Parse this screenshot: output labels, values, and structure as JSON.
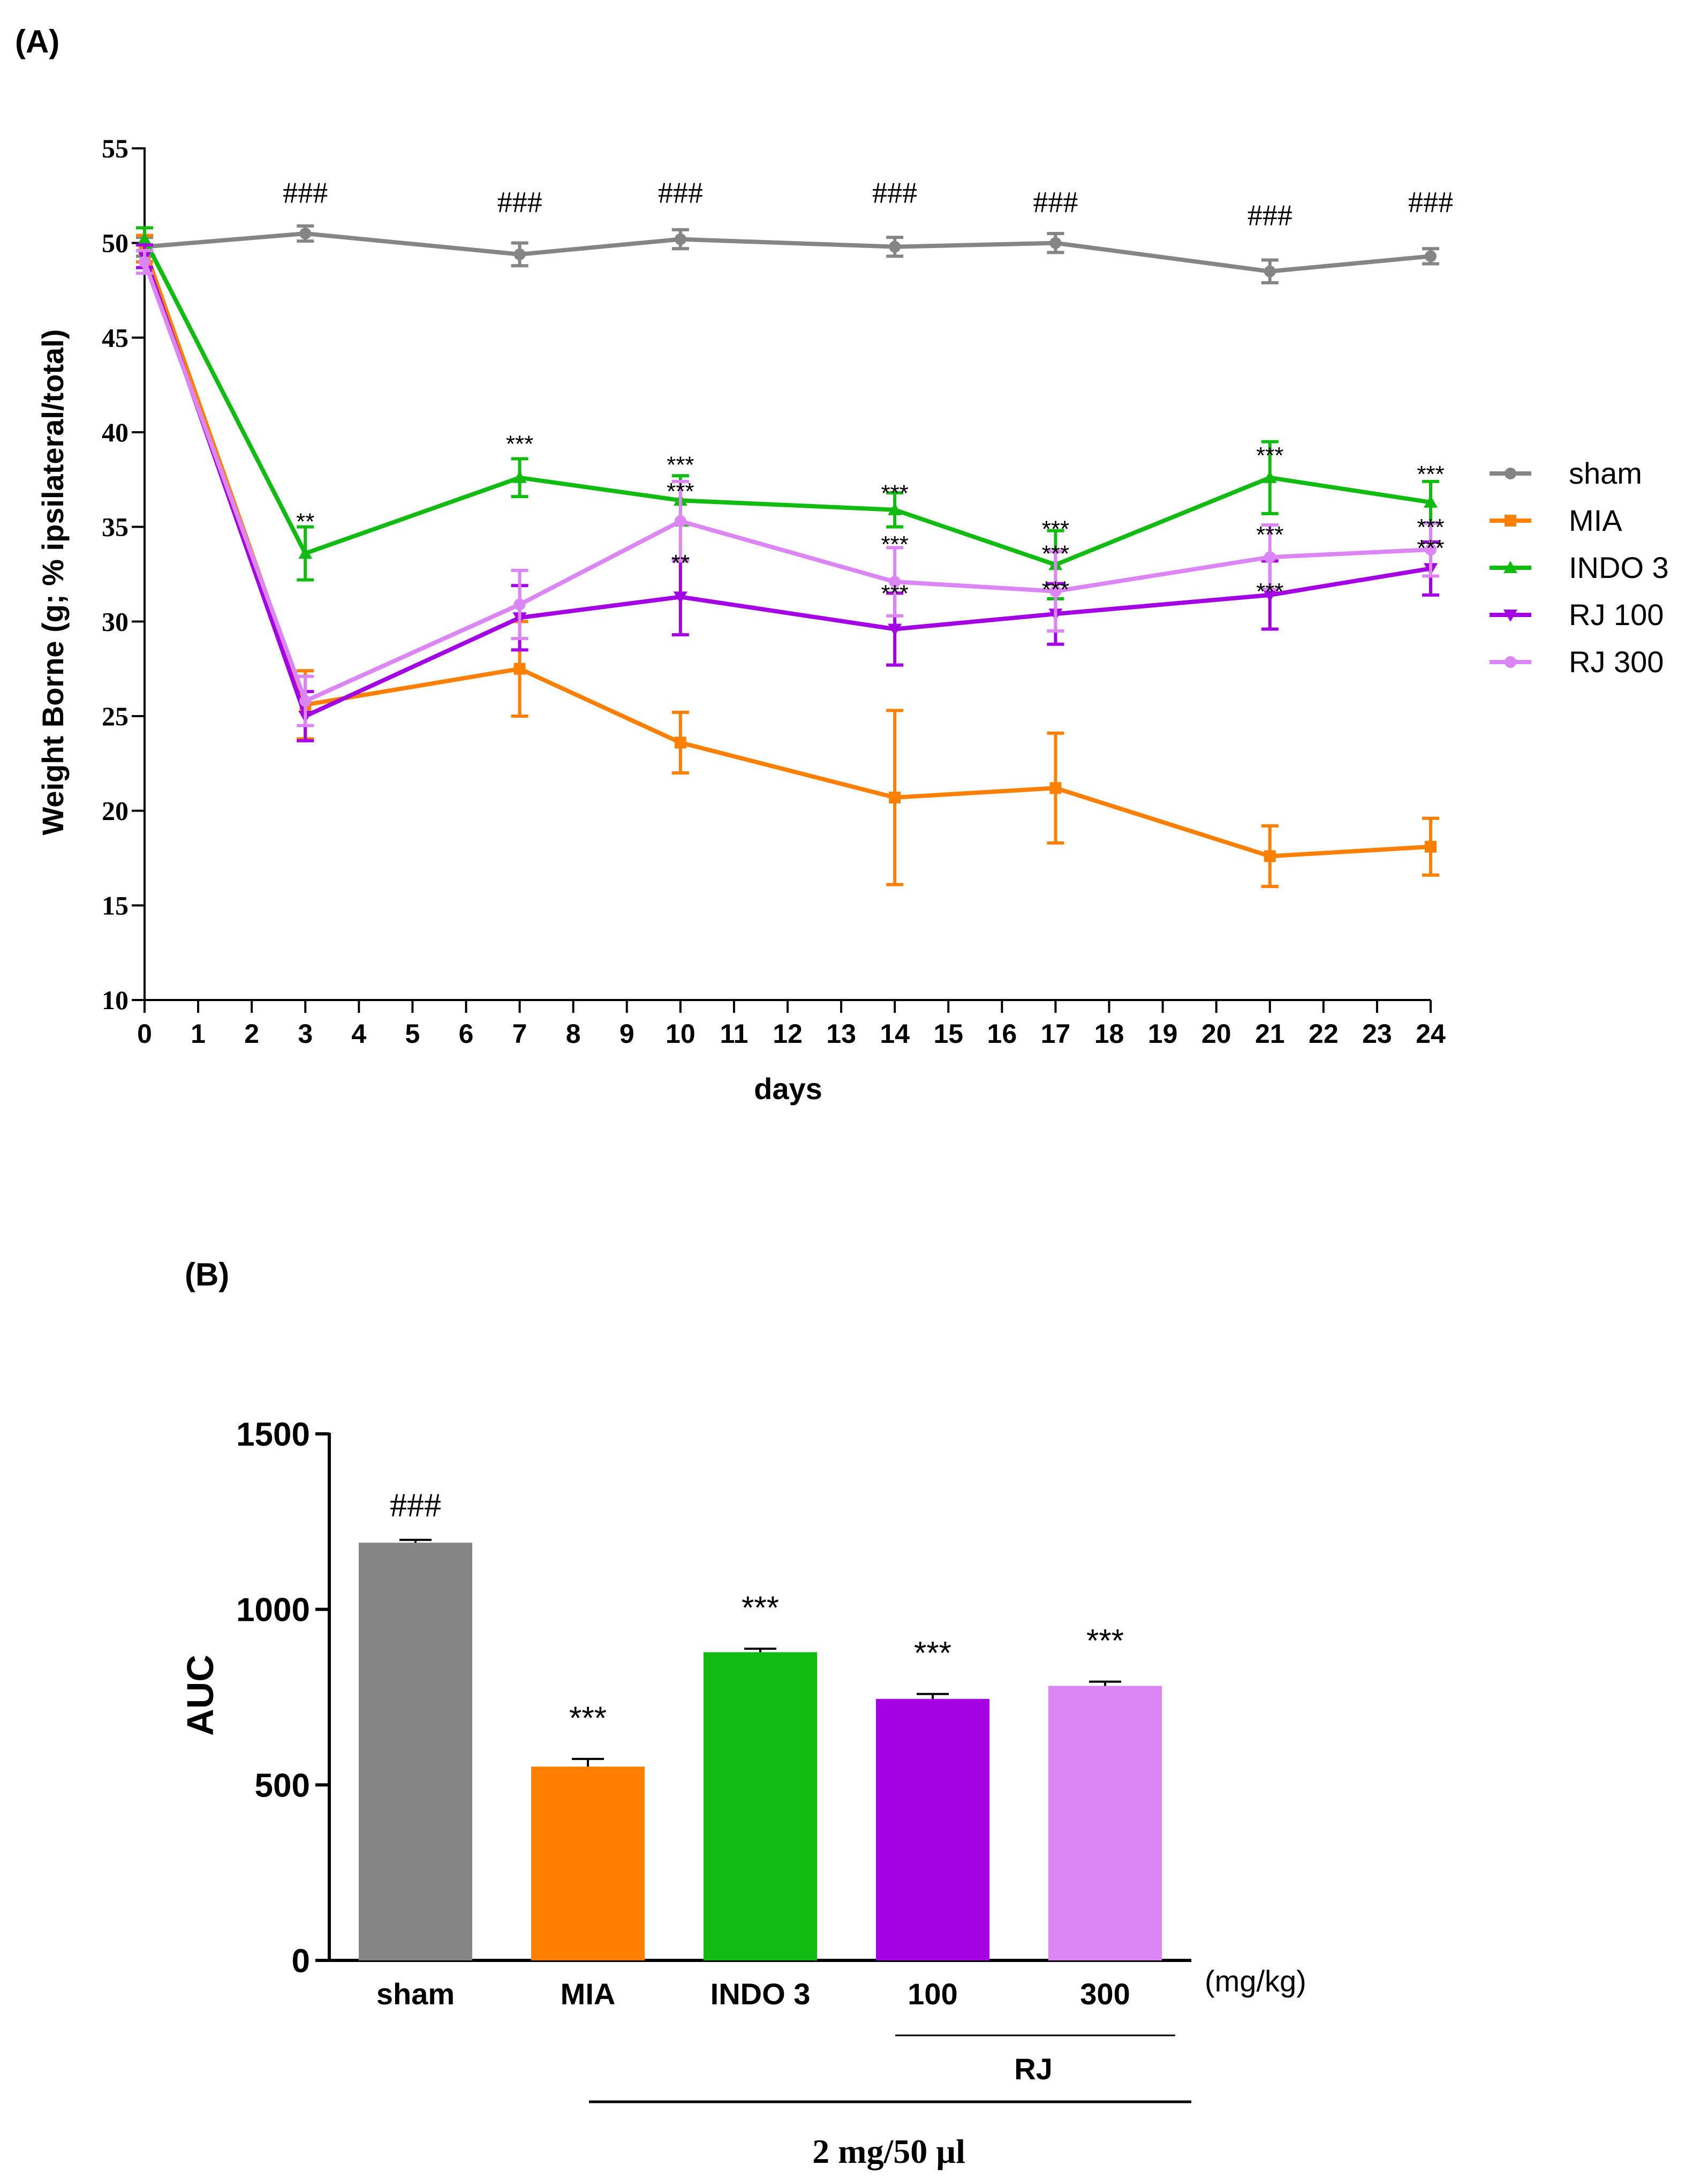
{
  "colors": {
    "sham": "#858585",
    "MIA": "#FF8000",
    "INDO 3": "#11BB11",
    "RJ 100": "#A300E3",
    "RJ 300": "#DB86F4",
    "axis": "#000000"
  },
  "chart_data": [
    {
      "type": "line",
      "panel_label": "(A)",
      "title": "",
      "xlabel": "days",
      "ylabel": "Weight Borne (g; % ipsilateral/total)",
      "xlim": [
        0,
        24
      ],
      "ylim": [
        10,
        55
      ],
      "x_ticks": [
        "0",
        "1",
        "2",
        "3",
        "4",
        "5",
        "6",
        "7",
        "8",
        "9",
        "10",
        "11",
        "12",
        "13",
        "14",
        "15",
        "16",
        "17",
        "18",
        "19",
        "20",
        "21",
        "22",
        "23",
        "24"
      ],
      "y_ticks": [
        "10",
        "15",
        "20",
        "25",
        "30",
        "35",
        "40",
        "45",
        "50",
        "55"
      ],
      "legend_position": "right",
      "x": [
        0,
        3,
        7,
        10,
        14,
        17,
        21,
        24
      ],
      "series": [
        {
          "name": "sham",
          "marker": "circle",
          "values": [
            49.8,
            50.5,
            49.4,
            50.2,
            49.8,
            50.0,
            48.5,
            49.3
          ],
          "errors": [
            0.5,
            0.4,
            0.6,
            0.5,
            0.5,
            0.5,
            0.6,
            0.4
          ]
        },
        {
          "name": "MIA",
          "marker": "square",
          "values": [
            49.7,
            25.6,
            27.5,
            23.6,
            20.7,
            21.2,
            17.6,
            18.1
          ],
          "errors": [
            0.7,
            1.8,
            2.5,
            1.6,
            4.6,
            2.9,
            1.6,
            1.5
          ]
        },
        {
          "name": "INDO 3",
          "marker": "triangle-up",
          "values": [
            50.2,
            33.6,
            37.6,
            36.4,
            35.9,
            33.0,
            37.6,
            36.3
          ],
          "errors": [
            0.6,
            1.4,
            1.0,
            1.3,
            0.9,
            1.8,
            1.9,
            1.1
          ]
        },
        {
          "name": "RJ 100",
          "marker": "triangle-down",
          "values": [
            49.3,
            25.0,
            30.2,
            31.3,
            29.6,
            30.4,
            31.4,
            32.8
          ],
          "errors": [
            0.6,
            1.3,
            1.7,
            2.0,
            1.9,
            1.6,
            1.8,
            1.4
          ]
        },
        {
          "name": "RJ 300",
          "marker": "circle",
          "values": [
            49.0,
            25.8,
            30.9,
            35.3,
            32.1,
            31.6,
            33.4,
            33.8
          ],
          "errors": [
            0.6,
            1.3,
            1.8,
            2.1,
            1.8,
            2.1,
            1.7,
            1.4
          ]
        }
      ],
      "annotations": [
        {
          "text": "###",
          "x": 3,
          "y": 52.7
        },
        {
          "text": "###",
          "x": 7,
          "y": 52.2
        },
        {
          "text": "###",
          "x": 10,
          "y": 52.7
        },
        {
          "text": "###",
          "x": 14,
          "y": 52.7
        },
        {
          "text": "###",
          "x": 17,
          "y": 52.2
        },
        {
          "text": "###",
          "x": 21,
          "y": 51.5
        },
        {
          "text": "###",
          "x": 24,
          "y": 52.2
        },
        {
          "text": "**",
          "x": 3,
          "y": 35.6
        },
        {
          "text": "***",
          "x": 7,
          "y": 39.7
        },
        {
          "text": "***",
          "x": 10,
          "y": 38.6
        },
        {
          "text": "***",
          "x": 10,
          "y": 37.2
        },
        {
          "text": "**",
          "x": 10,
          "y": 33.4
        },
        {
          "text": "***",
          "x": 14,
          "y": 37.1
        },
        {
          "text": "***",
          "x": 14,
          "y": 34.4
        },
        {
          "text": "***",
          "x": 14,
          "y": 31.8
        },
        {
          "text": "***",
          "x": 17,
          "y": 35.2
        },
        {
          "text": "***",
          "x": 17,
          "y": 33.9
        },
        {
          "text": "***",
          "x": 17,
          "y": 32.0
        },
        {
          "text": "***",
          "x": 21,
          "y": 39.1
        },
        {
          "text": "***",
          "x": 21,
          "y": 34.9
        },
        {
          "text": "***",
          "x": 21,
          "y": 31.9
        },
        {
          "text": "***",
          "x": 24,
          "y": 38.1
        },
        {
          "text": "***",
          "x": 24,
          "y": 35.3
        },
        {
          "text": "***",
          "x": 24,
          "y": 34.2
        }
      ]
    },
    {
      "type": "bar",
      "panel_label": "(B)",
      "title": "",
      "xlabel": "",
      "ylabel": "AUC",
      "ylim": [
        0,
        1500
      ],
      "y_ticks": [
        "0",
        "500",
        "1000",
        "1500"
      ],
      "categories": [
        "sham",
        "MIA",
        "INDO 3",
        "100",
        "300"
      ],
      "series_names": [
        "sham",
        "MIA",
        "INDO 3",
        "RJ 100",
        "RJ 300"
      ],
      "values": [
        1190,
        552,
        878,
        745,
        782
      ],
      "errors": [
        8,
        22,
        10,
        14,
        12
      ],
      "bar_annotations": [
        "###",
        "***",
        "***",
        "***",
        "***"
      ],
      "unit_label": "(mg/kg)",
      "group_label": "RJ",
      "treatment_label": "2 mg/50 µl"
    }
  ]
}
